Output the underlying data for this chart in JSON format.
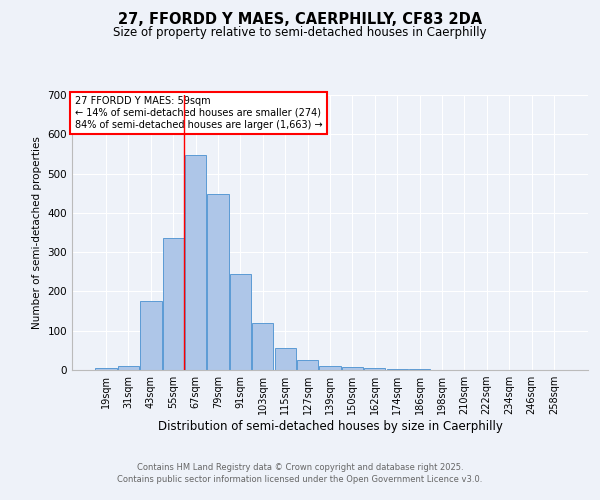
{
  "title1": "27, FFORDD Y MAES, CAERPHILLY, CF83 2DA",
  "title2": "Size of property relative to semi-detached houses in Caerphilly",
  "xlabel": "Distribution of semi-detached houses by size in Caerphilly",
  "ylabel": "Number of semi-detached properties",
  "bin_labels": [
    "19sqm",
    "31sqm",
    "43sqm",
    "55sqm",
    "67sqm",
    "79sqm",
    "91sqm",
    "103sqm",
    "115sqm",
    "127sqm",
    "139sqm",
    "150sqm",
    "162sqm",
    "174sqm",
    "186sqm",
    "198sqm",
    "210sqm",
    "222sqm",
    "234sqm",
    "246sqm",
    "258sqm"
  ],
  "bar_values": [
    5,
    11,
    175,
    335,
    548,
    447,
    245,
    120,
    57,
    25,
    9,
    8,
    5,
    3,
    2,
    0,
    0,
    0,
    0,
    0,
    0
  ],
  "bar_color": "#aec6e8",
  "bar_edge_color": "#5b9bd5",
  "red_line_x": 3.5,
  "annotation_text": "27 FFORDD Y MAES: 59sqm\n← 14% of semi-detached houses are smaller (274)\n84% of semi-detached houses are larger (1,663) →",
  "annotation_box_color": "white",
  "annotation_box_edge": "red",
  "ylim": [
    0,
    700
  ],
  "yticks": [
    0,
    100,
    200,
    300,
    400,
    500,
    600,
    700
  ],
  "footer1": "Contains HM Land Registry data © Crown copyright and database right 2025.",
  "footer2": "Contains public sector information licensed under the Open Government Licence v3.0.",
  "bg_color": "#eef2f9",
  "plot_bg_color": "#eef2f9"
}
